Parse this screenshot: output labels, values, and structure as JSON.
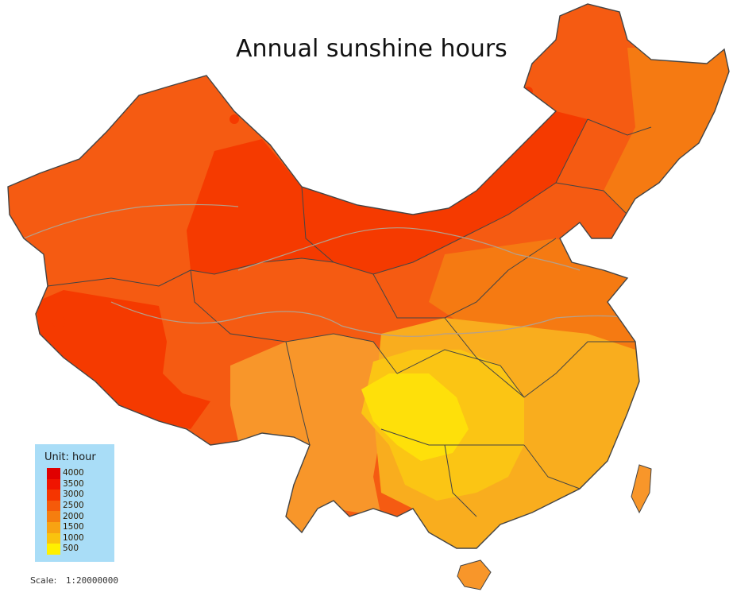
{
  "title": "Annual sunshine hours",
  "legend": {
    "title": "Unit: hour",
    "items": [
      {
        "label": "4000",
        "color": "#e00000"
      },
      {
        "label": "3500",
        "color": "#f01400"
      },
      {
        "label": "3000",
        "color": "#f53500"
      },
      {
        "label": "2500",
        "color": "#f55a0a"
      },
      {
        "label": "2000",
        "color": "#f57e0f"
      },
      {
        "label": "1500",
        "color": "#f8a312"
      },
      {
        "label": "1000",
        "color": "#fac30e"
      },
      {
        "label": "500",
        "color": "#fff000"
      }
    ]
  },
  "scale": {
    "label": "Scale:",
    "value": "1:20000000"
  },
  "colors": {
    "very_high": "#f53a00",
    "high": "#f55b12",
    "mid_high": "#f57a12",
    "mid": "#f8962a",
    "mid_low": "#f9ad1e",
    "low": "#fbc514",
    "very_low": "#fee00a",
    "boundary": "#444444",
    "river": "#b4a08c"
  }
}
